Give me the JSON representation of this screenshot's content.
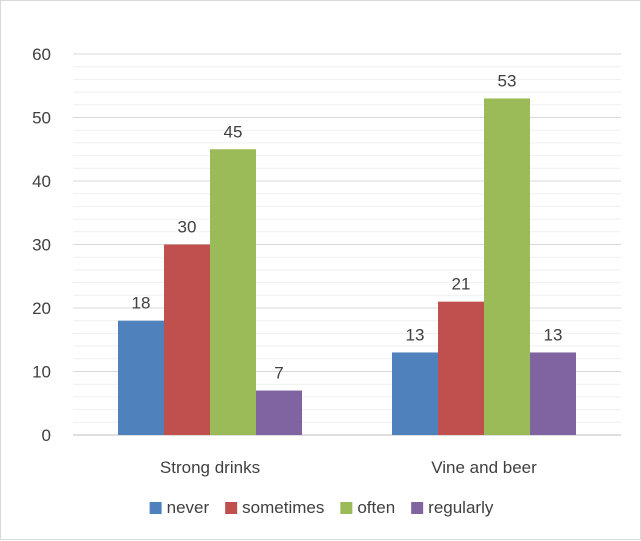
{
  "chart_data": {
    "type": "bar",
    "categories": [
      "Strong drinks",
      "Vine and beer"
    ],
    "series": [
      {
        "name": "never",
        "values": [
          18,
          13
        ],
        "color": "#4f81bd"
      },
      {
        "name": "sometimes",
        "values": [
          30,
          21
        ],
        "color": "#c0504d"
      },
      {
        "name": "often",
        "values": [
          45,
          53
        ],
        "color": "#9bbb59"
      },
      {
        "name": "regularly",
        "values": [
          7,
          13
        ],
        "color": "#8064a2"
      }
    ],
    "ylim": [
      0,
      60
    ],
    "yticks": [
      0,
      10,
      20,
      30,
      40,
      50,
      60
    ],
    "grid": true,
    "legend": "bottom",
    "data_labels": true
  }
}
